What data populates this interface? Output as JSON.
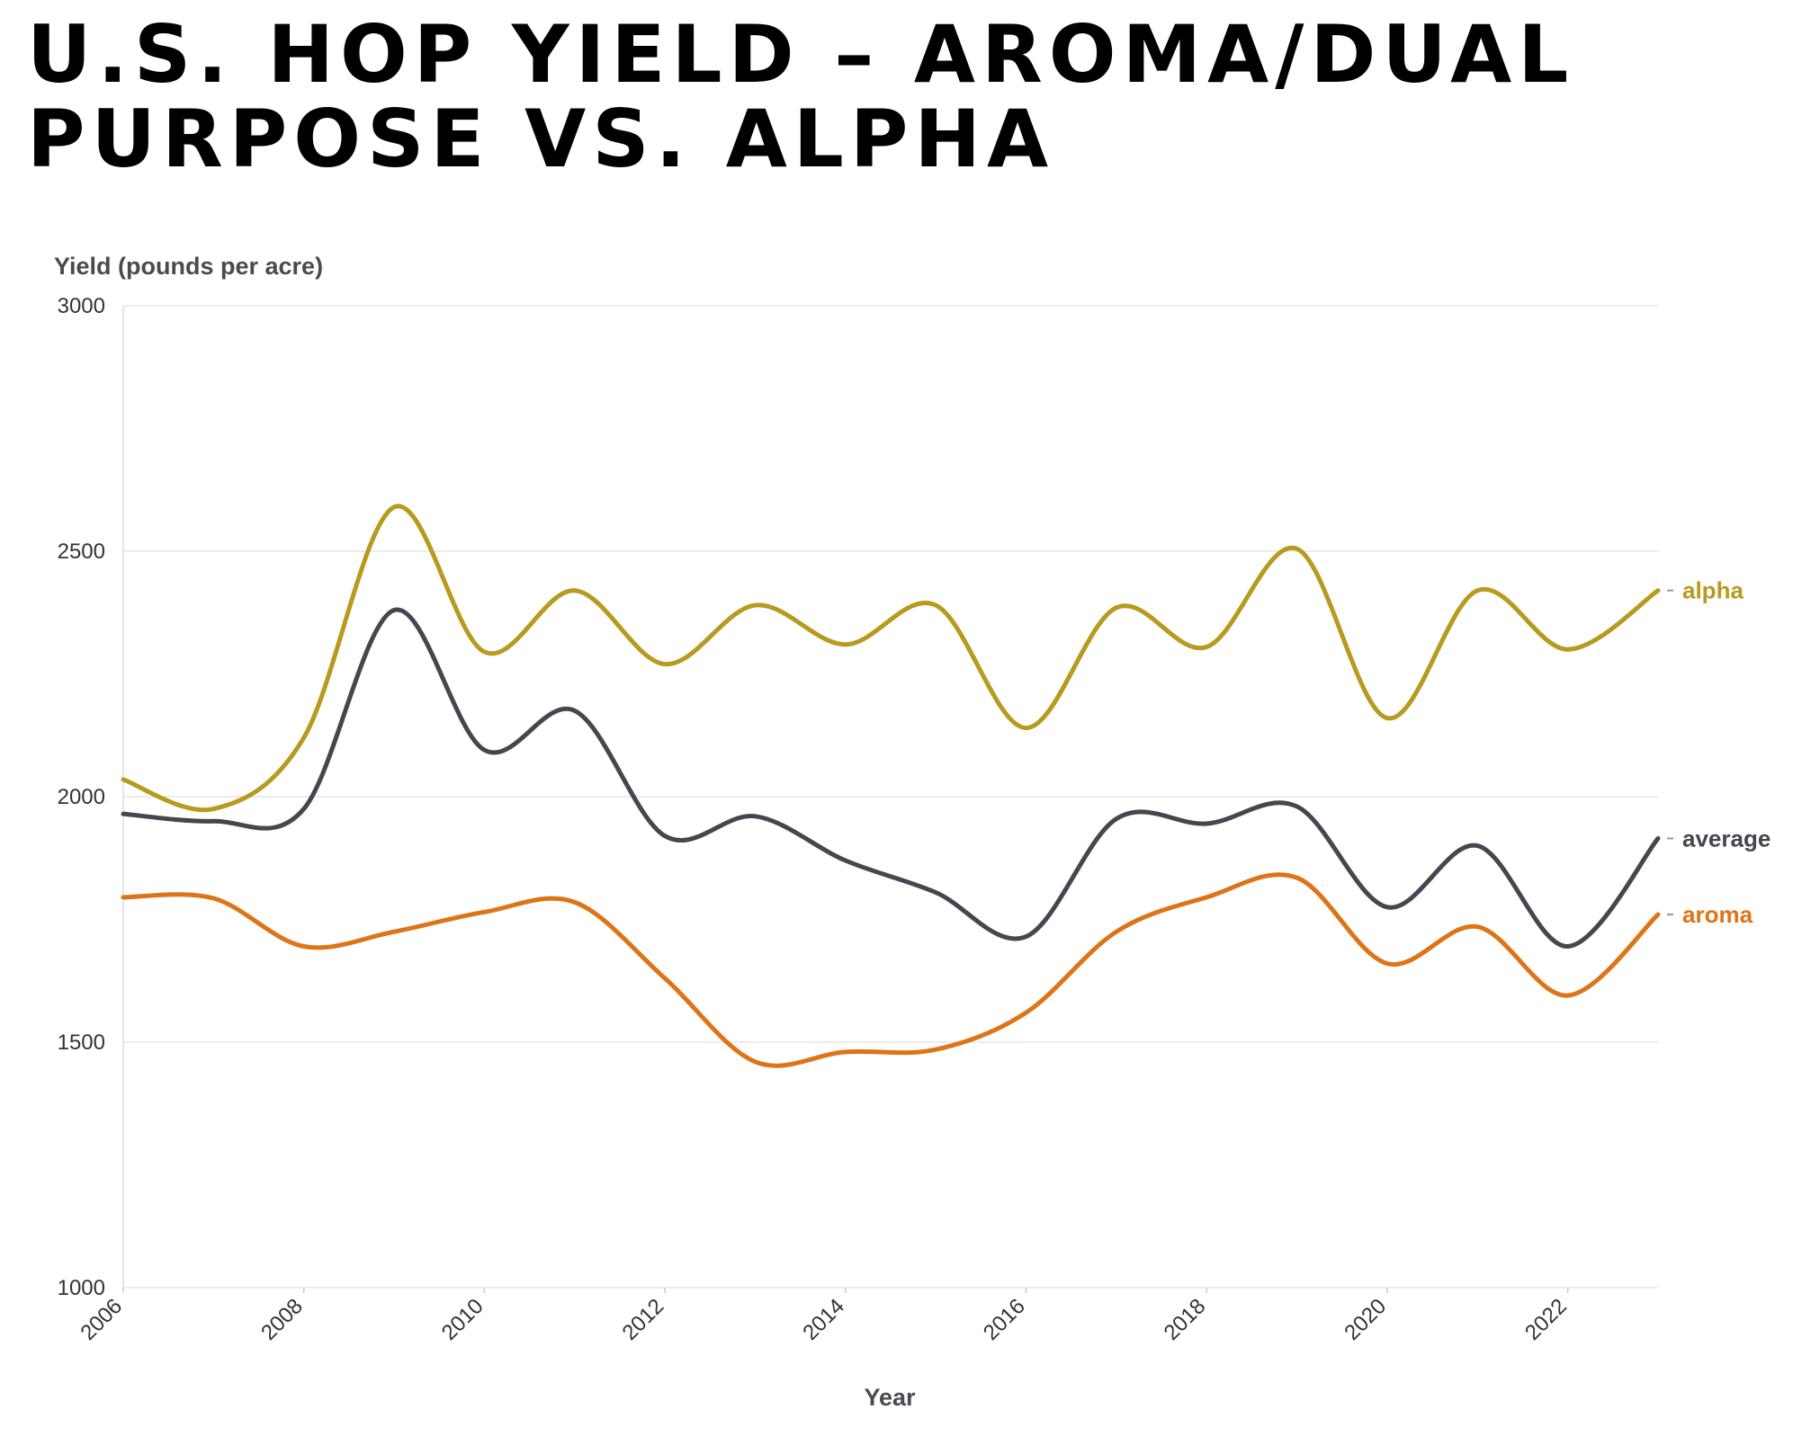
{
  "title": {
    "line1": "U.S. HOP YIELD – AROMA/DUAL",
    "line2": "PURPOSE VS. ALPHA"
  },
  "chart_data": {
    "type": "line",
    "title": "U.S. HOP YIELD – AROMA/DUAL PURPOSE VS. ALPHA",
    "ylabel": "Yield (pounds per acre)",
    "xlabel": "Year",
    "ylim": [
      1000,
      3000
    ],
    "xlim": [
      2006,
      2023
    ],
    "y_ticks": [
      1000,
      1500,
      2000,
      2500,
      3000
    ],
    "x_ticks": [
      2006,
      2008,
      2010,
      2012,
      2014,
      2016,
      2018,
      2020,
      2022
    ],
    "grid": "horizontal",
    "legend": "direct labels at right end of lines",
    "x": [
      2006,
      2007,
      2008,
      2009,
      2010,
      2011,
      2012,
      2013,
      2014,
      2015,
      2016,
      2017,
      2018,
      2019,
      2020,
      2021,
      2022,
      2023
    ],
    "series": [
      {
        "name": "alpha",
        "color": "#b89a1f",
        "values": [
          2035,
          1975,
          2120,
          2590,
          2295,
          2420,
          2270,
          2390,
          2310,
          2390,
          2140,
          2385,
          2305,
          2505,
          2160,
          2420,
          2300,
          2420
        ]
      },
      {
        "name": "average",
        "color": "#45464f",
        "values": [
          1965,
          1950,
          1975,
          2380,
          2095,
          2175,
          1920,
          1960,
          1870,
          1805,
          1715,
          1955,
          1945,
          1980,
          1775,
          1900,
          1695,
          1915
        ]
      },
      {
        "name": "aroma",
        "color": "#de7418",
        "values": [
          1795,
          1793,
          1695,
          1725,
          1765,
          1785,
          1630,
          1460,
          1480,
          1485,
          1560,
          1725,
          1795,
          1835,
          1660,
          1735,
          1595,
          1760
        ]
      }
    ]
  }
}
